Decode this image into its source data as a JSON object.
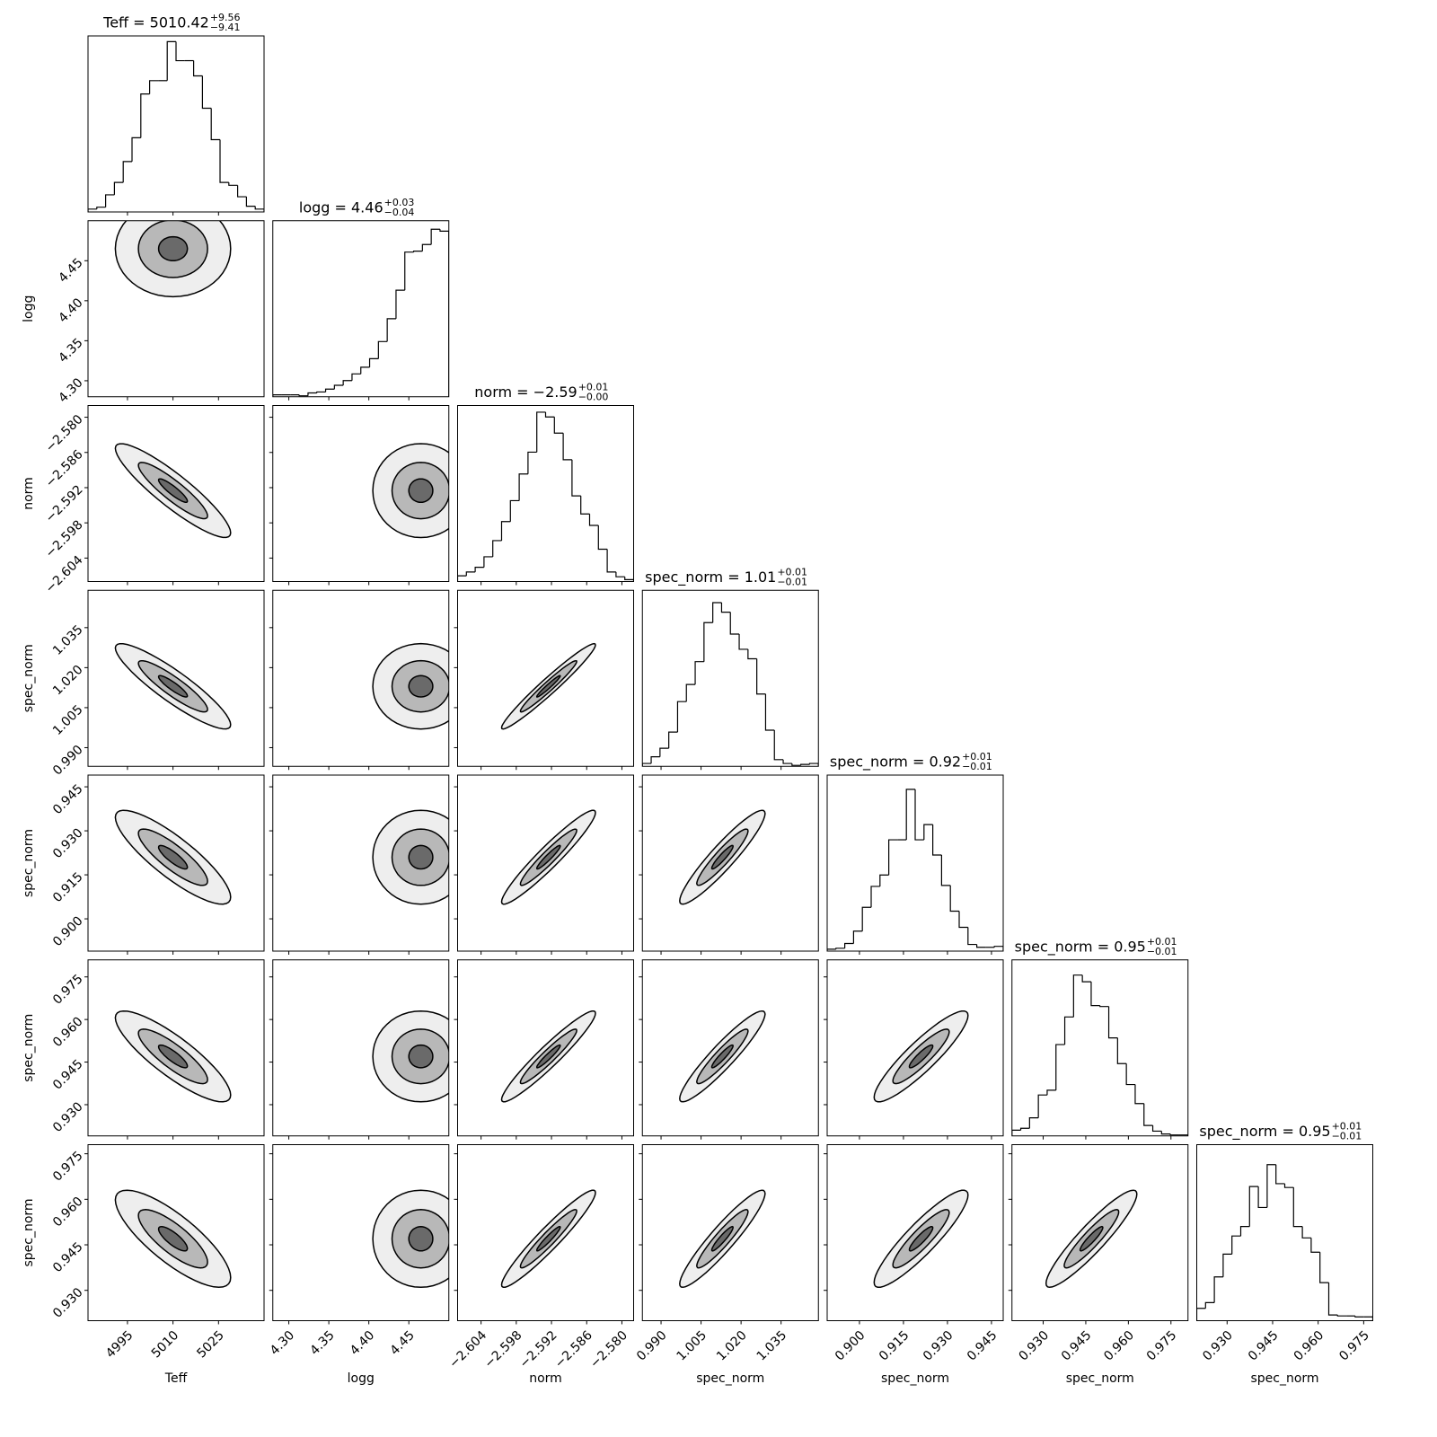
{
  "chart_data": {
    "type": "corner",
    "params": [
      {
        "label": "Teff",
        "title": "Teff = 5010.42",
        "upper": "+9.56",
        "lower": "−9.41",
        "lim": [
          4982,
          5040
        ],
        "ticks": [
          4995,
          5010,
          5025
        ],
        "center": 5010,
        "sd": 9.5,
        "bins": [
          4982,
          4984.9,
          4987.8,
          4990.7,
          4993.6,
          4996.5,
          4999.4,
          5002.3,
          5005.2,
          5008.1,
          5011,
          5013.9,
          5016.8,
          5019.7,
          5022.6,
          5025.5,
          5028.4,
          5031.3,
          5034.2,
          5037.1,
          5040
        ],
        "counts": [
          3,
          5,
          18,
          31,
          53,
          78,
          124,
          138,
          138,
          179,
          159,
          159,
          143,
          109,
          76,
          31,
          28,
          16,
          6,
          3
        ],
        "count_lim": [
          0,
          185
        ]
      },
      {
        "label": "logg",
        "title": "logg = 4.46",
        "upper": "+0.03",
        "lower": "−0.04",
        "lim": [
          4.28,
          4.5
        ],
        "ticks": [
          {
            "value": 4.3,
            "label": "4.30"
          },
          4.35,
          {
            "value": 4.4,
            "label": "4.40"
          },
          4.45
        ],
        "center": 4.465,
        "sd": 0.03,
        "bins": [
          4.28,
          4.291,
          4.302,
          4.313,
          4.324,
          4.335,
          4.346,
          4.357,
          4.368,
          4.379,
          4.39,
          4.401,
          4.412,
          4.423,
          4.434,
          4.445,
          4.456,
          4.467,
          4.478,
          4.489,
          4.5
        ],
        "counts": [
          2,
          2,
          2,
          1,
          4,
          5,
          8,
          12,
          17,
          24,
          31,
          40,
          58,
          82,
          112,
          152,
          153,
          160,
          176,
          174
        ],
        "count_lim": [
          0,
          185
        ]
      },
      {
        "label": "norm",
        "title": "norm = −2.59",
        "upper": "+0.01",
        "lower": "−0.00",
        "lim": [
          -2.608,
          -2.578
        ],
        "ticks": [
          {
            "value": -2.604,
            "label": "−2.604"
          },
          {
            "value": -2.598,
            "label": "−2.598"
          },
          {
            "value": -2.592,
            "label": "−2.592"
          },
          {
            "value": -2.586,
            "label": "−2.586"
          },
          {
            "value": -2.58,
            "label": "−2.580"
          }
        ],
        "center": -2.5925,
        "sd": 0.004,
        "bins": [
          -2.608,
          -2.6065,
          -2.605,
          -2.6035,
          -2.602,
          -2.6005,
          -2.599,
          -2.5975,
          -2.596,
          -2.5945,
          -2.593,
          -2.5915,
          -2.59,
          -2.5885,
          -2.587,
          -2.5855,
          -2.584,
          -2.5825,
          -2.581,
          -2.5795,
          -2.578
        ],
        "counts": [
          6,
          10,
          15,
          26,
          43,
          63,
          85,
          113,
          136,
          178,
          173,
          156,
          128,
          90,
          71,
          59,
          34,
          10,
          5,
          2
        ],
        "count_lim": [
          0,
          185
        ]
      },
      {
        "label": "spec_norm",
        "title": "spec_norm = 1.01",
        "upper": "+0.01",
        "lower": "−0.01",
        "lim": [
          0.983,
          1.049
        ],
        "ticks": [
          {
            "value": 0.99,
            "label": "0.990"
          },
          1.005,
          {
            "value": 1.02,
            "label": "1.020"
          },
          1.035
        ],
        "center": 1.013,
        "sd": 0.008,
        "bins": [
          0.983,
          0.9863,
          0.9896,
          0.9929,
          0.9962,
          0.9995,
          1.0028,
          1.0061,
          1.0094,
          1.0127,
          1.016,
          1.0193,
          1.0226,
          1.0259,
          1.0292,
          1.0325,
          1.0358,
          1.0391,
          1.0424,
          1.0457,
          1.049
        ],
        "counts": [
          3,
          10,
          19,
          36,
          68,
          86,
          110,
          151,
          172,
          162,
          139,
          123,
          113,
          76,
          38,
          7,
          3,
          1,
          2,
          3
        ],
        "count_lim": [
          0,
          185
        ]
      },
      {
        "label": "spec_norm",
        "title": "spec_norm = 0.92",
        "upper": "+0.01",
        "lower": "−0.01",
        "lim": [
          0.889,
          0.949
        ],
        "ticks": [
          {
            "value": 0.9,
            "label": "0.900"
          },
          0.915,
          {
            "value": 0.93,
            "label": "0.930"
          },
          0.945
        ],
        "center": 0.921,
        "sd": 0.008,
        "bins": [
          0.889,
          0.892,
          0.895,
          0.898,
          0.901,
          0.904,
          0.907,
          0.91,
          0.913,
          0.916,
          0.919,
          0.922,
          0.925,
          0.928,
          0.931,
          0.934,
          0.937,
          0.94,
          0.943,
          0.946,
          0.949
        ],
        "counts": [
          2,
          3,
          8,
          21,
          46,
          68,
          80,
          117,
          117,
          170,
          117,
          133,
          101,
          69,
          42,
          25,
          7,
          4,
          4,
          5
        ],
        "count_lim": [
          0,
          185
        ]
      },
      {
        "label": "spec_norm",
        "title": "spec_norm = 0.95",
        "upper": "+0.01",
        "lower": "−0.01",
        "lim": [
          0.919,
          0.981
        ],
        "ticks": [
          {
            "value": 0.93,
            "label": "0.930"
          },
          0.945,
          {
            "value": 0.96,
            "label": "0.960"
          },
          0.975
        ],
        "center": 0.947,
        "sd": 0.008,
        "bins": [
          0.919,
          0.9221,
          0.9252,
          0.9283,
          0.9314,
          0.9345,
          0.9376,
          0.9407,
          0.9438,
          0.9469,
          0.95,
          0.9531,
          0.9562,
          0.9593,
          0.9624,
          0.9655,
          0.9686,
          0.9717,
          0.9748,
          0.9779,
          0.981
        ],
        "counts": [
          6,
          8,
          19,
          43,
          48,
          96,
          125,
          169,
          162,
          137,
          136,
          103,
          76,
          54,
          34,
          11,
          5,
          2,
          1,
          1
        ],
        "count_lim": [
          0,
          185
        ]
      },
      {
        "label": "spec_norm",
        "title": "spec_norm = 0.95",
        "upper": "+0.01",
        "lower": "−0.01",
        "lim": [
          0.92,
          0.978
        ],
        "ticks": [
          {
            "value": 0.93,
            "label": "0.930"
          },
          0.945,
          {
            "value": 0.96,
            "label": "0.960"
          },
          0.975
        ],
        "center": 0.947,
        "sd": 0.008,
        "bins": [
          0.92,
          0.9229,
          0.9258,
          0.9287,
          0.9316,
          0.9345,
          0.9374,
          0.9403,
          0.9432,
          0.9461,
          0.949,
          0.9519,
          0.9548,
          0.9577,
          0.9606,
          0.9635,
          0.9664,
          0.9693,
          0.9722,
          0.9751,
          0.978
        ],
        "counts": [
          13,
          19,
          46,
          70,
          89,
          99,
          141,
          119,
          164,
          144,
          140,
          99,
          87,
          72,
          40,
          6,
          5,
          5,
          4,
          4
        ],
        "count_lim": [
          0,
          185
        ]
      }
    ],
    "pairs": [
      {
        "corr": 0.0
      },
      {
        "corr": -0.9
      },
      {
        "corr": 0.0
      },
      {
        "corr": -0.9
      },
      {
        "corr": 0.0
      },
      {
        "corr": 0.97
      },
      {
        "corr": -0.85
      },
      {
        "corr": 0.0
      },
      {
        "corr": 0.95
      },
      {
        "corr": 0.93
      },
      {
        "corr": -0.85
      },
      {
        "corr": 0.0
      },
      {
        "corr": 0.95
      },
      {
        "corr": 0.93
      },
      {
        "corr": 0.9
      },
      {
        "corr": -0.8
      },
      {
        "corr": 0.0
      },
      {
        "corr": 0.95
      },
      {
        "corr": 0.93
      },
      {
        "corr": 0.9
      },
      {
        "corr": 0.92
      }
    ]
  }
}
